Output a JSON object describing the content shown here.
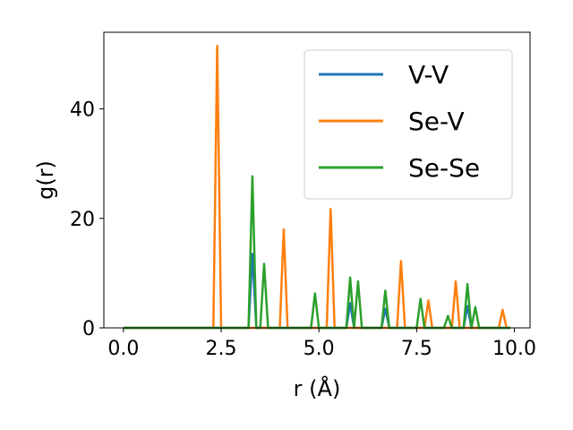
{
  "chart_data": {
    "type": "line",
    "title": "",
    "xlabel": "r (Å)",
    "ylabel": "g(r)",
    "xlim": [
      -0.5,
      10.4
    ],
    "ylim": [
      0,
      54
    ],
    "x_ticks": [
      0.0,
      2.5,
      5.0,
      7.5,
      10.0
    ],
    "x_tick_labels": [
      "0.0",
      "2.5",
      "5.0",
      "7.5",
      "10.0"
    ],
    "y_ticks": [
      0,
      20,
      40
    ],
    "y_tick_labels": [
      "0",
      "20",
      "40"
    ],
    "grid": false,
    "legend_position": "top-right",
    "series": [
      {
        "name": "V-V",
        "color": "#1f77b4",
        "points": [
          [
            0.0,
            0
          ],
          [
            3.2,
            0
          ],
          [
            3.3,
            13.5
          ],
          [
            3.4,
            0
          ],
          [
            5.7,
            0
          ],
          [
            5.8,
            4.5
          ],
          [
            5.9,
            0
          ],
          [
            6.6,
            0
          ],
          [
            6.7,
            3.5
          ],
          [
            6.8,
            0
          ],
          [
            8.7,
            0
          ],
          [
            8.8,
            4.0
          ],
          [
            8.9,
            0
          ],
          [
            9.9,
            0
          ]
        ]
      },
      {
        "name": "Se-V",
        "color": "#ff7f0e",
        "points": [
          [
            0.0,
            0
          ],
          [
            2.3,
            0
          ],
          [
            2.4,
            51.5
          ],
          [
            2.5,
            0
          ],
          [
            4.0,
            0
          ],
          [
            4.1,
            18.0
          ],
          [
            4.2,
            0
          ],
          [
            5.2,
            0
          ],
          [
            5.3,
            21.7
          ],
          [
            5.4,
            0
          ],
          [
            7.0,
            0
          ],
          [
            7.1,
            12.2
          ],
          [
            7.2,
            0
          ],
          [
            7.7,
            0
          ],
          [
            7.8,
            5.0
          ],
          [
            7.9,
            0
          ],
          [
            8.4,
            0
          ],
          [
            8.5,
            8.5
          ],
          [
            8.6,
            0
          ],
          [
            9.6,
            0
          ],
          [
            9.7,
            3.3
          ],
          [
            9.8,
            0
          ],
          [
            9.9,
            0
          ]
        ]
      },
      {
        "name": "Se-Se",
        "color": "#2ca02c",
        "points": [
          [
            0.0,
            0
          ],
          [
            3.2,
            0
          ],
          [
            3.3,
            27.7
          ],
          [
            3.4,
            0
          ],
          [
            3.5,
            0
          ],
          [
            3.6,
            11.7
          ],
          [
            3.7,
            0
          ],
          [
            4.8,
            0
          ],
          [
            4.9,
            6.3
          ],
          [
            5.0,
            0
          ],
          [
            5.7,
            0
          ],
          [
            5.8,
            9.2
          ],
          [
            5.9,
            0
          ],
          [
            6.0,
            8.5
          ],
          [
            6.1,
            0
          ],
          [
            6.6,
            0
          ],
          [
            6.7,
            6.8
          ],
          [
            6.8,
            0
          ],
          [
            7.5,
            0
          ],
          [
            7.6,
            5.3
          ],
          [
            7.7,
            0
          ],
          [
            8.2,
            0
          ],
          [
            8.3,
            2.2
          ],
          [
            8.4,
            0
          ],
          [
            8.7,
            0
          ],
          [
            8.8,
            8.0
          ],
          [
            8.9,
            0
          ],
          [
            9.0,
            3.8
          ],
          [
            9.1,
            0
          ],
          [
            9.9,
            0
          ]
        ]
      }
    ]
  }
}
